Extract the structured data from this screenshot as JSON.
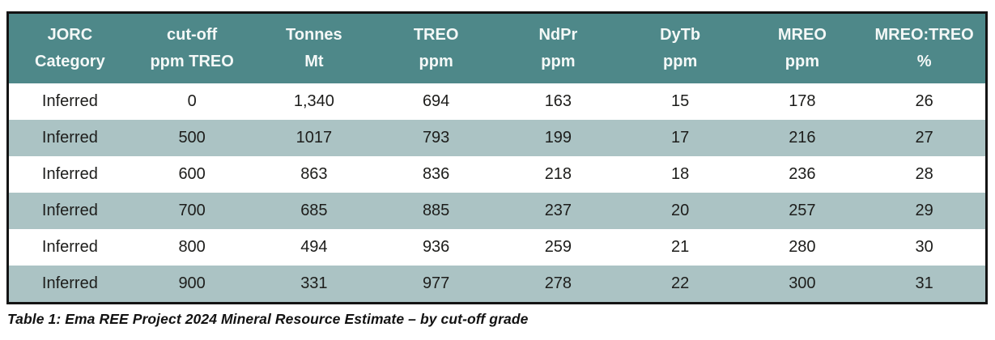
{
  "table": {
    "columns": [
      {
        "key": "jorc-category",
        "line1": "JORC",
        "line2": "Category"
      },
      {
        "key": "cutoff",
        "line1": "cut-off",
        "line2": "ppm TREO"
      },
      {
        "key": "tonnes",
        "line1": "Tonnes",
        "line2": "Mt"
      },
      {
        "key": "treo",
        "line1": "TREO",
        "line2": "ppm"
      },
      {
        "key": "ndpr",
        "line1": "NdPr",
        "line2": "ppm"
      },
      {
        "key": "dytb",
        "line1": "DyTb",
        "line2": "ppm"
      },
      {
        "key": "mreo",
        "line1": "MREO",
        "line2": "ppm"
      },
      {
        "key": "mreo-treo-ratio",
        "line1": "MREO:TREO",
        "line2": "%"
      }
    ],
    "rows": [
      [
        "Inferred",
        "0",
        "1,340",
        "694",
        "163",
        "15",
        "178",
        "26"
      ],
      [
        "Inferred",
        "500",
        "1017",
        "793",
        "199",
        "17",
        "216",
        "27"
      ],
      [
        "Inferred",
        "600",
        "863",
        "836",
        "218",
        "18",
        "236",
        "28"
      ],
      [
        "Inferred",
        "700",
        "685",
        "885",
        "237",
        "20",
        "257",
        "29"
      ],
      [
        "Inferred",
        "800",
        "494",
        "936",
        "259",
        "21",
        "280",
        "30"
      ],
      [
        "Inferred",
        "900",
        "331",
        "977",
        "278",
        "22",
        "300",
        "31"
      ]
    ]
  },
  "caption": "Table 1: Ema REE Project 2024 Mineral Resource Estimate – by cut-off grade",
  "colors": {
    "header_bg": "#4e8889",
    "header_text": "#f4f8f7",
    "row_bg": "#ffffff",
    "row_alt_bg": "#abc3c4",
    "body_text": "#1d1d1b",
    "border": "#141414",
    "page_bg": "#ffffff"
  },
  "chart_data": {
    "type": "table",
    "title": "Ema REE Project 2024 Mineral Resource Estimate – by cut-off grade",
    "columns": [
      "JORC Category",
      "cut-off ppm TREO",
      "Tonnes Mt",
      "TREO ppm",
      "NdPr ppm",
      "DyTb ppm",
      "MREO ppm",
      "MREO:TREO %"
    ],
    "rows": [
      [
        "Inferred",
        0,
        1340,
        694,
        163,
        15,
        178,
        26
      ],
      [
        "Inferred",
        500,
        1017,
        793,
        199,
        17,
        216,
        27
      ],
      [
        "Inferred",
        600,
        863,
        836,
        218,
        18,
        236,
        28
      ],
      [
        "Inferred",
        700,
        685,
        885,
        237,
        20,
        257,
        29
      ],
      [
        "Inferred",
        800,
        494,
        936,
        259,
        21,
        280,
        30
      ],
      [
        "Inferred",
        900,
        331,
        977,
        278,
        22,
        300,
        31
      ]
    ]
  }
}
